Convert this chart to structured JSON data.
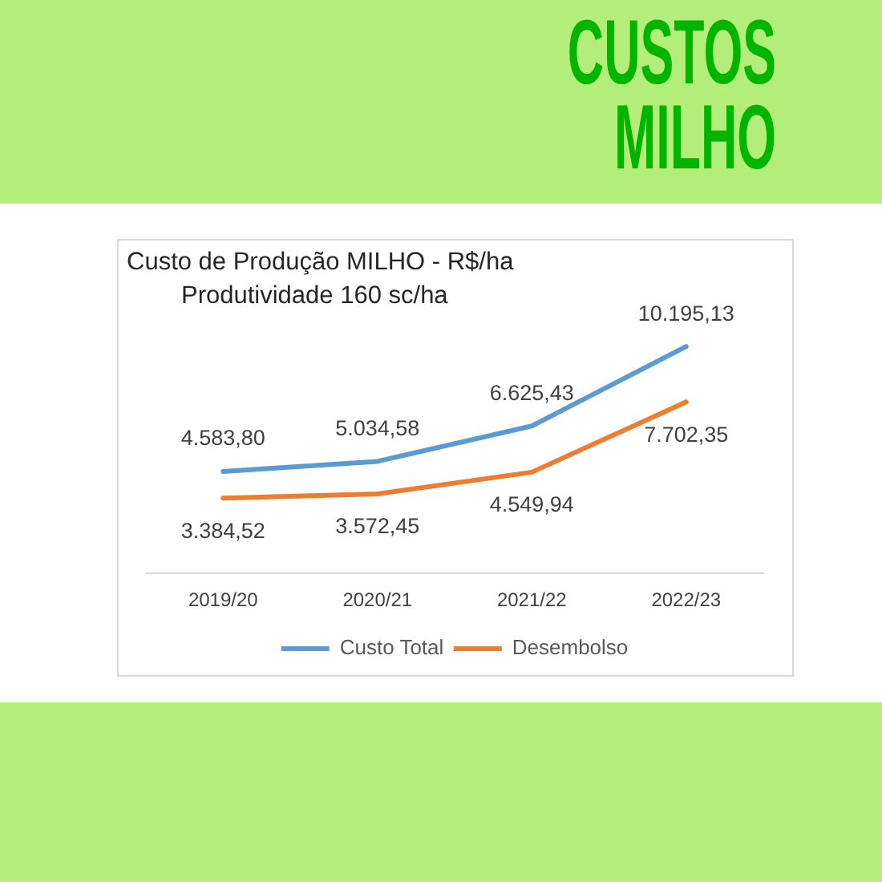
{
  "chart_data": {
    "type": "line",
    "title": "Custo de Produção MILHO - R$/ha",
    "subtitle": "Produtividade 160 sc/ha",
    "annotations": [
      "CUSTOS MILHO"
    ],
    "categories": [
      "2019/20",
      "2020/21",
      "2021/22",
      "2022/23"
    ],
    "series": [
      {
        "name": "Custo Total",
        "color": "#5b9bd5",
        "values": [
          4583.8,
          5034.58,
          6625.43,
          10195.13
        ],
        "value_labels": [
          "4.583,80",
          "5.034,58",
          "6.625,43",
          "10.195,13"
        ]
      },
      {
        "name": "Desembolso",
        "color": "#ed7d31",
        "values": [
          3384.52,
          3572.45,
          4549.94,
          7702.35
        ],
        "value_labels": [
          "3.384,52",
          "3.572,45",
          "4.549,94",
          "7.702,35"
        ]
      }
    ],
    "tick_labels": "x",
    "grid": false,
    "legend": "bottom",
    "marker": "none"
  }
}
